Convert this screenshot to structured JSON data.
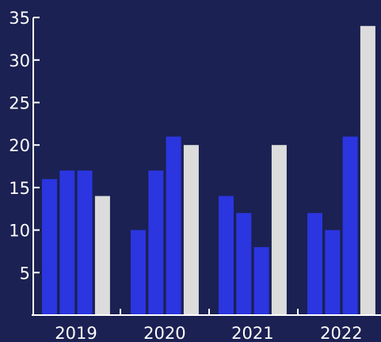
{
  "chart_data": {
    "type": "bar",
    "categories": [
      "2019",
      "2020",
      "2021",
      "2022"
    ],
    "series": [
      {
        "values": [
          16,
          10,
          14,
          12
        ]
      },
      {
        "values": [
          17,
          17,
          12,
          10
        ]
      },
      {
        "values": [
          17,
          21,
          8,
          21
        ]
      },
      {
        "values": [
          14,
          20,
          20,
          34
        ]
      }
    ],
    "y_ticks": [
      "5",
      "10",
      "15",
      "20",
      "25",
      "30",
      "35"
    ],
    "ylim": [
      0,
      35
    ],
    "grid": false,
    "legend": "none",
    "title": "",
    "xlabel": "",
    "ylabel": ""
  },
  "colors": {
    "background": "#1b2152",
    "axis": "#ffffff",
    "text": "#ffffff",
    "series": [
      "#2b35e0",
      "#2b35e0",
      "#2b35e0",
      "#dcdcdc"
    ]
  }
}
